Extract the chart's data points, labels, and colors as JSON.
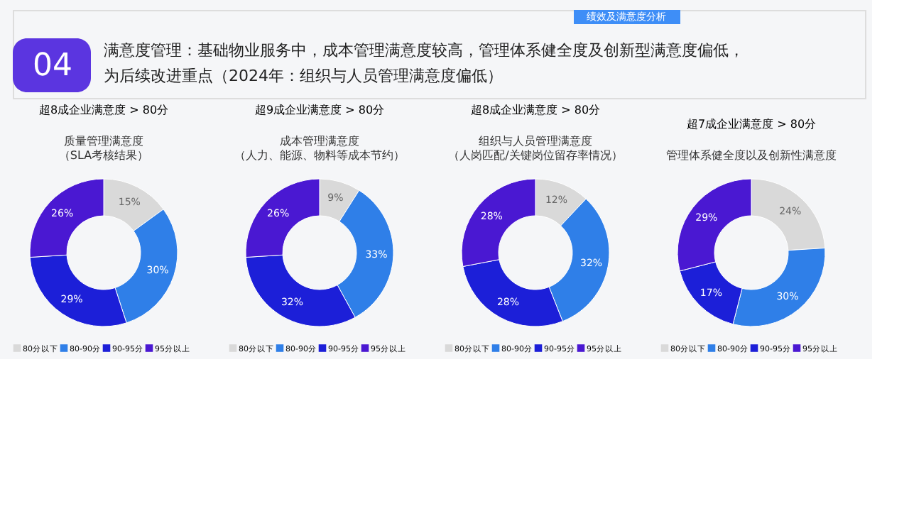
{
  "chart_data": [
    {
      "type": "other",
      "title": "满意度管理：基础物业服务中，成本管理满意度较高，管理体系健全度及创新型满意度偏低，为后续改进重点（2024年：组织与人员管理满意度偏低）",
      "annotations": [
        "04",
        "绩效及满意度分析"
      ]
    },
    {
      "type": "donut",
      "title": "超8成企业满意度 > 80分",
      "subtitle": "质量管理满意度（SLA考核结果）",
      "categories": [
        "80分以下",
        "80-90分",
        "90-95分",
        "95分以上"
      ],
      "values": [
        15,
        30,
        29,
        26
      ],
      "value_labels": [
        "15%",
        "30%",
        "29%",
        "26%"
      ],
      "colors": [
        "#d9d9d9",
        "#2f7fe8",
        "#1c1fd8",
        "#4a18d2"
      ],
      "legend": "bottom"
    },
    {
      "type": "donut",
      "title": "超9成企业满意度 > 80分",
      "subtitle": "成本管理满意度（人力、能源、物料等成本节约）",
      "categories": [
        "80分以下",
        "80-90分",
        "90-95分",
        "95分以上"
      ],
      "values": [
        9,
        33,
        32,
        26
      ],
      "value_labels": [
        "9%",
        "33%",
        "32%",
        "26%"
      ],
      "colors": [
        "#d9d9d9",
        "#2f7fe8",
        "#1c1fd8",
        "#4a18d2"
      ],
      "legend": "bottom"
    },
    {
      "type": "donut",
      "title": "超8成企业满意度 > 80分",
      "subtitle": "组织与人员管理满意度（人岗匹配/关键岗位留存率情况）",
      "categories": [
        "80分以下",
        "80-90分",
        "90-95分",
        "95分以上"
      ],
      "values": [
        12,
        32,
        28,
        28
      ],
      "value_labels": [
        "12%",
        "32%",
        "28%",
        "28%"
      ],
      "colors": [
        "#d9d9d9",
        "#2f7fe8",
        "#1c1fd8",
        "#4a18d2"
      ],
      "legend": "bottom"
    },
    {
      "type": "donut",
      "title": "超7成企业满意度 > 80分",
      "subtitle": "管理体系健全度以及创新性满意度",
      "categories": [
        "80分以下",
        "80-90分",
        "90-95分",
        "95分以上"
      ],
      "values": [
        24,
        30,
        17,
        29
      ],
      "value_labels": [
        "24%",
        "30%",
        "17%",
        "29%"
      ],
      "colors": [
        "#d9d9d9",
        "#2f7fe8",
        "#1c1fd8",
        "#4a18d2"
      ],
      "legend": "bottom"
    }
  ]
}
